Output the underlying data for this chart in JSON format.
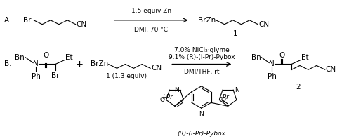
{
  "bg_color": "#ffffff",
  "text_color": "#000000",
  "label_A": "A.",
  "label_B": "B.",
  "reaction_A_above": "1.5 equiv Zn",
  "reaction_A_below": "DMI, 70 °C",
  "reaction_B_line1": "7.0% NiCl₂·glyme",
  "reaction_B_line2": "9.1% (R)-(​i-Pr)-Pybox",
  "reaction_B_line3": "DMI/THF, rt",
  "compound1_label": "1",
  "compound2_label": "2",
  "equiv_label": "1 (1.3 equiv)",
  "pybox_label": "(R)-(​i-Pr)-Pybox",
  "fs": 7.5,
  "fss": 6.5
}
